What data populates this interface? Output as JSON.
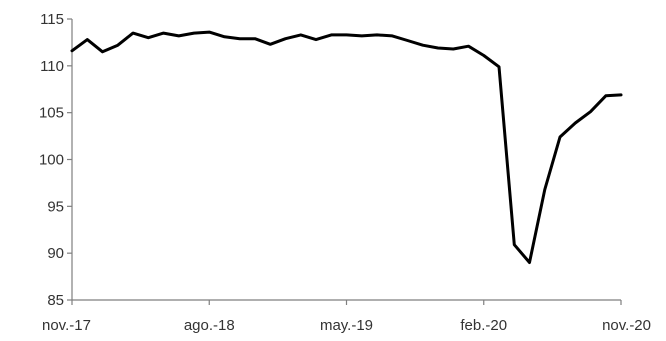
{
  "chart_data": {
    "type": "line",
    "title": "",
    "xlabel": "",
    "ylabel": "",
    "ylim": [
      85,
      115
    ],
    "yticks": [
      85,
      90,
      95,
      100,
      105,
      110,
      115
    ],
    "xticks": [
      {
        "label": "nov.-17",
        "date": "2017-11"
      },
      {
        "label": "ago.-18",
        "date": "2018-08"
      },
      {
        "label": "may.-19",
        "date": "2019-05"
      },
      {
        "label": "feb.-20",
        "date": "2020-02"
      },
      {
        "label": "nov.-20",
        "date": "2020-11"
      }
    ],
    "grid": false,
    "legend": "none",
    "line_color": "#000000",
    "series": [
      {
        "x": [
          "2017-11",
          "2017-12",
          "2018-01",
          "2018-02",
          "2018-03",
          "2018-04",
          "2018-05",
          "2018-06",
          "2018-07",
          "2018-08",
          "2018-09",
          "2018-10",
          "2018-11",
          "2018-12",
          "2019-01",
          "2019-02",
          "2019-03",
          "2019-04",
          "2019-05",
          "2019-06",
          "2019-07",
          "2019-08",
          "2019-09",
          "2019-10",
          "2019-11",
          "2019-12",
          "2020-01",
          "2020-02",
          "2020-03",
          "2020-04",
          "2020-05",
          "2020-06",
          "2020-07",
          "2020-08",
          "2020-09",
          "2020-10",
          "2020-11"
        ],
        "values": [
          111.6,
          112.8,
          111.5,
          112.2,
          113.5,
          113.0,
          113.5,
          113.2,
          113.5,
          113.6,
          113.1,
          112.9,
          112.9,
          112.3,
          112.9,
          113.3,
          112.8,
          113.3,
          113.3,
          113.2,
          113.3,
          113.2,
          112.7,
          112.2,
          111.9,
          111.8,
          112.1,
          111.1,
          109.9,
          90.9,
          89.0,
          96.8,
          102.4,
          103.9,
          105.1,
          106.8,
          106.9
        ]
      }
    ]
  }
}
